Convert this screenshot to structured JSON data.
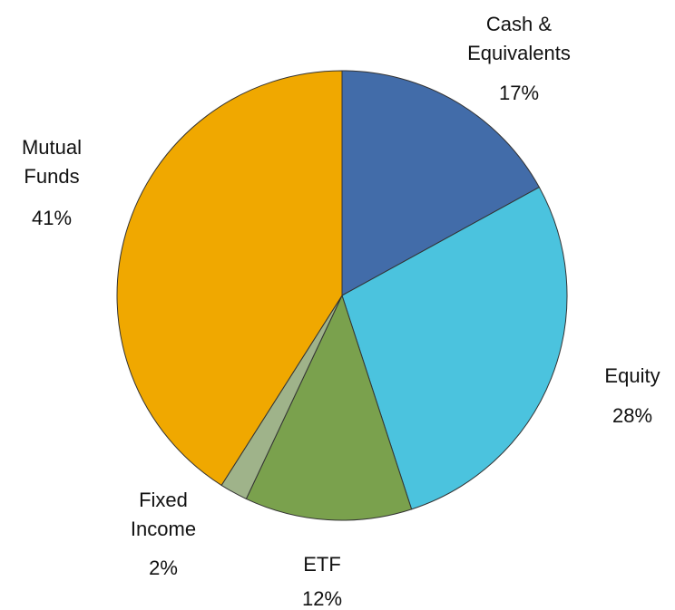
{
  "chart_data": {
    "type": "pie",
    "categories": [
      "Cash &\nEquivalents",
      "Equity",
      "ETF",
      "Fixed\nIncome",
      "Mutual\nFunds"
    ],
    "values": [
      17,
      28,
      12,
      2,
      41
    ],
    "value_labels": [
      "17%",
      "28%",
      "12%",
      "2%",
      "41%"
    ],
    "colors": [
      "#426ca9",
      "#4bc3de",
      "#7aa14d",
      "#9fb38a",
      "#f0a800"
    ]
  }
}
